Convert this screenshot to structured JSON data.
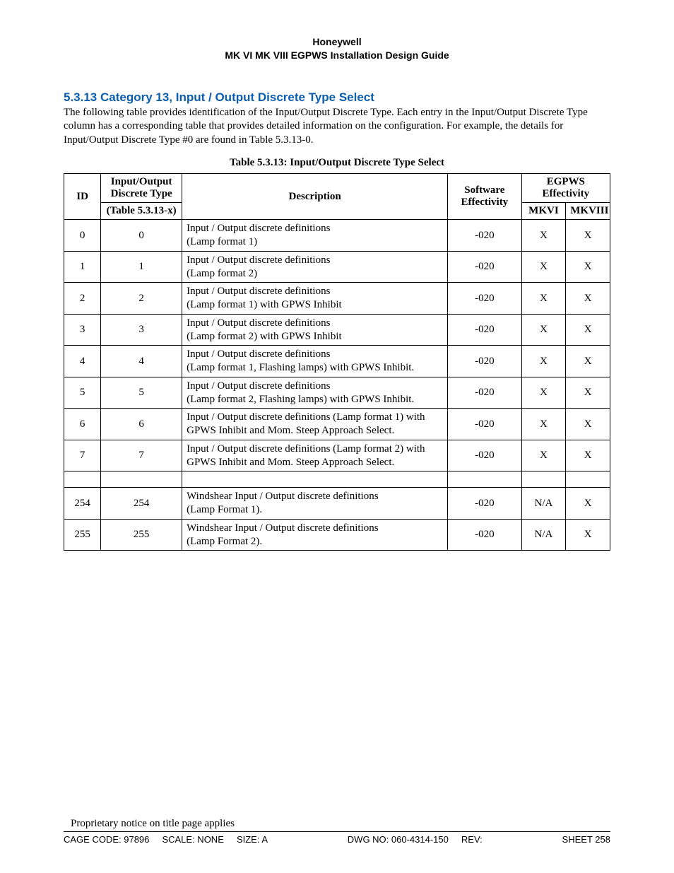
{
  "header": {
    "company": "Honeywell",
    "doc_title": "MK VI  MK VIII EGPWS Installation Design Guide"
  },
  "section": {
    "number_title": "5.3.13 Category 13, Input / Output Discrete Type Select",
    "intro": "The following table provides identification of the Input/Output Discrete Type.  Each entry in the Input/Output Discrete Type column has a corresponding table that provides detailed information on the configuration.  For example, the details for Input/Output Discrete Type #0 are found in Table 5.3.13-0."
  },
  "table": {
    "caption": "Table 5.3.13: Input/Output Discrete Type Select",
    "headers": {
      "id": "ID",
      "iod_line1": "Input/Output",
      "iod_line2": "Discrete Type",
      "iod_sub": "(Table 5.3.13-x)",
      "description": "Description",
      "sw_line1": "Software",
      "sw_line2": "Effectivity",
      "egpws_line1": "EGPWS",
      "egpws_line2": "Effectivity",
      "mkvi": "MKVI",
      "mkviii": "MKVIII"
    },
    "rows": [
      {
        "id": "0",
        "iod": "0",
        "desc": "Input / Output discrete definitions\n(Lamp format 1)",
        "sw": "-020",
        "mkvi": "X",
        "mkviii": "X"
      },
      {
        "id": "1",
        "iod": "1",
        "desc": "Input / Output discrete definitions\n(Lamp format 2)",
        "sw": "-020",
        "mkvi": "X",
        "mkviii": "X"
      },
      {
        "id": "2",
        "iod": "2",
        "desc": "Input / Output discrete definitions\n(Lamp format 1) with  GPWS Inhibit",
        "sw": "-020",
        "mkvi": "X",
        "mkviii": "X"
      },
      {
        "id": "3",
        "iod": "3",
        "desc": "Input / Output discrete definitions\n(Lamp format 2) with GPWS Inhibit",
        "sw": "-020",
        "mkvi": "X",
        "mkviii": "X"
      },
      {
        "id": "4",
        "iod": "4",
        "desc": "Input / Output discrete definitions\n(Lamp format 1, Flashing lamps) with GPWS Inhibit.",
        "sw": "-020",
        "mkvi": "X",
        "mkviii": "X"
      },
      {
        "id": "5",
        "iod": "5",
        "desc": "Input / Output discrete definitions\n(Lamp format 2, Flashing lamps) with GPWS Inhibit.",
        "sw": "-020",
        "mkvi": "X",
        "mkviii": "X"
      },
      {
        "id": "6",
        "iod": "6",
        "desc": "Input / Output discrete definitions (Lamp format 1) with GPWS Inhibit and Mom. Steep Approach Select.",
        "sw": "-020",
        "mkvi": "X",
        "mkviii": "X"
      },
      {
        "id": "7",
        "iod": "7",
        "desc": "Input / Output discrete definitions (Lamp format 2) with GPWS Inhibit and Mom. Steep Approach Select.",
        "sw": "-020",
        "mkvi": "X",
        "mkviii": "X"
      },
      {
        "spacer": true
      },
      {
        "id": "254",
        "iod": "254",
        "desc": "Windshear Input / Output discrete definitions\n(Lamp Format 1).",
        "sw": "-020",
        "mkvi": "N/A",
        "mkviii": "X"
      },
      {
        "id": "255",
        "iod": "255",
        "desc": "Windshear Input / Output discrete definitions\n(Lamp Format 2).",
        "sw": "-020",
        "mkvi": "N/A",
        "mkviii": "X"
      }
    ]
  },
  "footer": {
    "notice": "Proprietary notice on title page applies",
    "cage": "CAGE CODE: 97896",
    "scale": "SCALE: NONE",
    "size": "SIZE: A",
    "dwg": "DWG NO: 060-4314-150",
    "rev": "REV:",
    "sheet_label": "SHEET",
    "sheet_no": "258"
  }
}
